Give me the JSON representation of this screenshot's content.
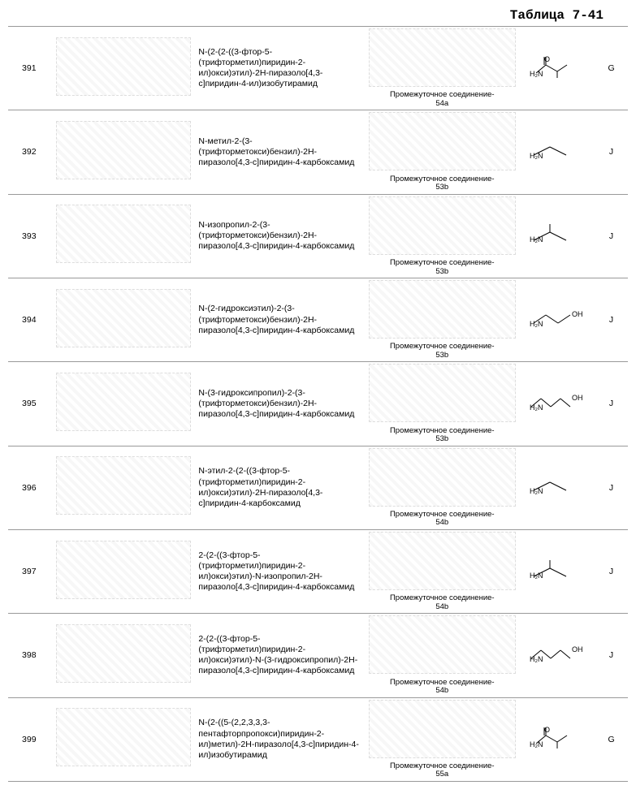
{
  "title": "Таблица 7-41",
  "intermediate_prefix": "Промежуточное соединение-",
  "amine_prefix": "H₂N",
  "rows": [
    {
      "num": "391",
      "name": "N-(2-(2-((3-фтор-5-(трифторметил)пиридин-2-ил)окси)этил)-2Н-пиразоло[4,3-с]пиридин-4-ил)изобутирамид",
      "intermediate": "54a",
      "amine_extra": "",
      "amine_svg": "iso_amide",
      "col": "G"
    },
    {
      "num": "392",
      "name": "N-метил-2-(3-(трифторметокси)бензил)-2Н-пиразоло[4,3-с]пиридин-4-карбоксамид",
      "intermediate": "53b",
      "amine_extra": "",
      "amine_svg": "methyl",
      "col": "J"
    },
    {
      "num": "393",
      "name": "N-изопропил-2-(3-(трифторметокси)бензил)-2Н-пиразоло[4,3-с]пиридин-4-карбоксамид",
      "intermediate": "53b",
      "amine_extra": "",
      "amine_svg": "isopropyl",
      "col": "J"
    },
    {
      "num": "394",
      "name": "N-(2-гидроксиэтил)-2-(3-(трифторметокси)бензил)-2Н-пиразоло[4,3-с]пиридин-4-карбоксамид",
      "intermediate": "53b",
      "amine_extra": "OH",
      "amine_svg": "short_oh",
      "col": "J"
    },
    {
      "num": "395",
      "name": "N-(3-гидроксипропил)-2-(3-(трифторметокси)бензил)-2Н-пиразоло[4,3-с]пиридин-4-карбоксамид",
      "intermediate": "53b",
      "amine_extra": "OH",
      "amine_svg": "long_oh",
      "col": "J"
    },
    {
      "num": "396",
      "name": "N-этил-2-(2-((3-фтор-5-(трифторметил)пиридин-2-ил)окси)этил)-2Н-пиразоло[4,3-с]пиридин-4-карбоксамид",
      "intermediate": "54b",
      "amine_extra": "",
      "amine_svg": "methyl",
      "col": "J"
    },
    {
      "num": "397",
      "name": "2-(2-((3-фтор-5-(трифторметил)пиридин-2-ил)окси)этил)-N-изопропил-2Н-пиразоло[4,3-с]пиридин-4-карбоксамид",
      "intermediate": "54b",
      "amine_extra": "",
      "amine_svg": "isopropyl",
      "col": "J"
    },
    {
      "num": "398",
      "name": "2-(2-((3-фтор-5-(трифторметил)пиридин-2-ил)окси)этил)-N-(3-гидроксипропил)-2Н-пиразоло[4,3-с]пиридин-4-карбоксамид",
      "intermediate": "54b",
      "amine_extra": "OH",
      "amine_svg": "long_oh",
      "col": "J"
    },
    {
      "num": "399",
      "name": "N-(2-((5-(2,2,3,3,3-пентафторпропокси)пиридин-2-ил)метил)-2Н-пиразоло[4,3-с]пиридин-4-ил)изобутирамид",
      "intermediate": "55a",
      "amine_extra": "",
      "amine_svg": "iso_amide",
      "col": "G"
    }
  ]
}
